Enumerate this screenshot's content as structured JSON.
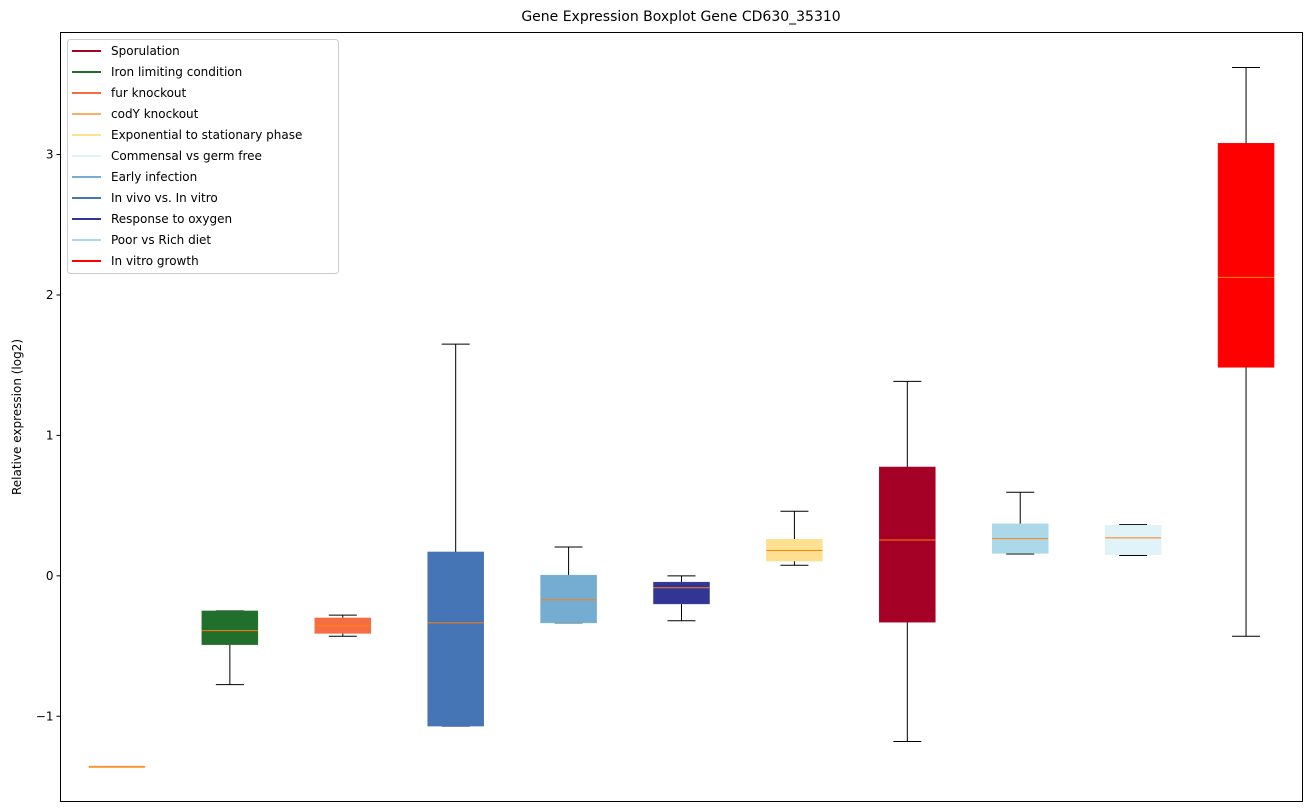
{
  "chart_data": {
    "type": "boxplot",
    "title": "Gene Expression Boxplot Gene CD630_35310",
    "xlabel": "",
    "ylabel": "Relative expression (log2)",
    "ylim": [
      -1.607,
      3.869
    ],
    "xlim": [
      0.5,
      11.5
    ],
    "yticks": [
      -1,
      0,
      1,
      2,
      3
    ],
    "ytick_labels": [
      "−1",
      "0",
      "1",
      "2",
      "3"
    ],
    "grid": false,
    "legend_position": "top-left",
    "legend": [
      {
        "label": "Sporulation",
        "color": "#a50026"
      },
      {
        "label": "Iron limiting condition",
        "color": "#226e2c"
      },
      {
        "label": "fur knockout",
        "color": "#f46d43"
      },
      {
        "label": "codY knockout",
        "color": "#fdae61"
      },
      {
        "label": "Exponential to stationary phase",
        "color": "#fee090"
      },
      {
        "label": "Commensal vs germ free",
        "color": "#e0f3f8"
      },
      {
        "label": "Early infection",
        "color": "#74add1"
      },
      {
        "label": "In vivo vs. In vitro",
        "color": "#4575b4"
      },
      {
        "label": "Response to oxygen",
        "color": "#313695"
      },
      {
        "label": "Poor vs Rich diet",
        "color": "#abd9e9"
      },
      {
        "label": "In vitro growth",
        "color": "#ff0000"
      }
    ],
    "boxes": [
      {
        "position": 1,
        "color": "#fdae61",
        "whislo": -1.36,
        "q1": -1.36,
        "med": -1.36,
        "q3": -1.36,
        "whishi": -1.36
      },
      {
        "position": 2,
        "color": "#226e2c",
        "whislo": -0.775,
        "q1": -0.49,
        "med": -0.39,
        "q3": -0.25,
        "whishi": -0.25
      },
      {
        "position": 3,
        "color": "#f46d43",
        "whislo": -0.43,
        "q1": -0.41,
        "med": -0.355,
        "q3": -0.3,
        "whishi": -0.28
      },
      {
        "position": 4,
        "color": "#4575b4",
        "whislo": -1.07,
        "q1": -1.07,
        "med": -0.335,
        "q3": 0.17,
        "whishi": 1.65
      },
      {
        "position": 5,
        "color": "#74add1",
        "whislo": -0.335,
        "q1": -0.335,
        "med": -0.17,
        "q3": 0.005,
        "whishi": 0.205
      },
      {
        "position": 6,
        "color": "#313695",
        "whislo": -0.32,
        "q1": -0.2,
        "med": -0.085,
        "q3": -0.045,
        "whishi": 0.0
      },
      {
        "position": 7,
        "color": "#fee090",
        "whislo": 0.075,
        "q1": 0.105,
        "med": 0.18,
        "q3": 0.26,
        "whishi": 0.46
      },
      {
        "position": 8,
        "color": "#a50026",
        "whislo": -1.18,
        "q1": -0.33,
        "med": 0.255,
        "q3": 0.775,
        "whishi": 1.385
      },
      {
        "position": 9,
        "color": "#abd9e9",
        "whislo": 0.155,
        "q1": 0.16,
        "med": 0.265,
        "q3": 0.37,
        "whishi": 0.595
      },
      {
        "position": 10,
        "color": "#e0f3f8",
        "whislo": 0.145,
        "q1": 0.15,
        "med": 0.27,
        "q3": 0.36,
        "whishi": 0.365
      },
      {
        "position": 11,
        "color": "#ff0000",
        "whislo": -0.43,
        "q1": 1.485,
        "med": 2.125,
        "q3": 3.08,
        "whishi": 3.62
      }
    ],
    "median_color": "#ff7f0e"
  }
}
